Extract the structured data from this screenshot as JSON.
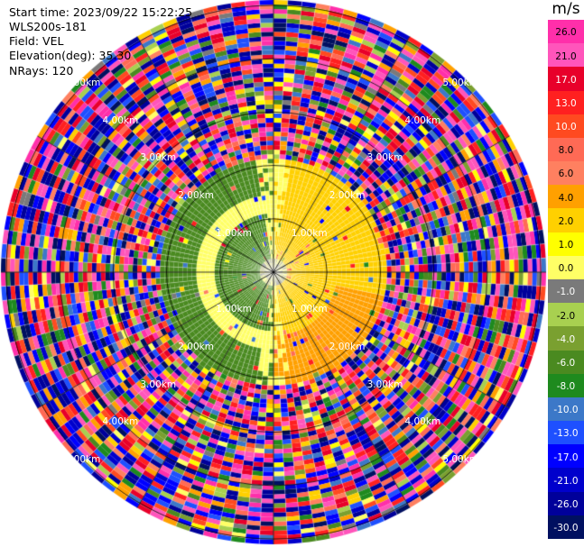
{
  "header": {
    "start_time": "Start time: 2023/09/22 15:22:25",
    "instrument": "WLS200s-181",
    "field": "Field: VEL",
    "elevation": "Elevation(deg): 35.30",
    "nrays": "NRays: 120"
  },
  "colorbar": {
    "unit": "m/s",
    "labels": [
      "26.0",
      "21.0",
      "17.0",
      "13.0",
      "10.0",
      "8.0",
      "6.0",
      "4.0",
      "2.0",
      "1.0",
      "0.0",
      "-1.0",
      "-2.0",
      "-4.0",
      "-6.0",
      "-8.0",
      "-10.0",
      "-13.0",
      "-17.0",
      "-21.0",
      "-26.0",
      "-30.0"
    ],
    "colors": [
      "#ff2faa",
      "#ff55bb",
      "#e8002a",
      "#ff2020",
      "#ff4a20",
      "#ff6a55",
      "#ff8060",
      "#ffa000",
      "#ffd000",
      "#ffff00",
      "#ffff66",
      "#7a7a7a",
      "#a8d050",
      "#7aa030",
      "#4a8a20",
      "#1e8a1e",
      "#3c78c8",
      "#1e50ff",
      "#0000ff",
      "#0000cc",
      "#00009a",
      "#001060"
    ]
  },
  "chart_data": {
    "type": "polar-ppi",
    "title": "",
    "field": "VEL",
    "unit": "m/s",
    "nrays": 120,
    "elevation_deg": 35.3,
    "range_ring_labels": [
      "1.00km",
      "2.00km",
      "3.00km",
      "4.00km",
      "5.00km"
    ],
    "range_rings_km": [
      1,
      2,
      3,
      4,
      5
    ],
    "max_range_km": 5.1,
    "color_levels": [
      -30.0,
      -26.0,
      -21.0,
      -17.0,
      -13.0,
      -10.0,
      -8.0,
      -6.0,
      -4.0,
      -2.0,
      -1.0,
      0.0,
      1.0,
      2.0,
      4.0,
      6.0,
      8.0,
      10.0,
      13.0,
      17.0,
      21.0,
      26.0
    ],
    "velocity_pattern": {
      "west_half_inner_km": 2.0,
      "west_value_ms": -5.0,
      "east_half_inner_km": 2.0,
      "east_value_ms": 2.5,
      "near_center_value_ms": 0.0,
      "noise_beyond_km": 2.1
    },
    "grid": true
  }
}
